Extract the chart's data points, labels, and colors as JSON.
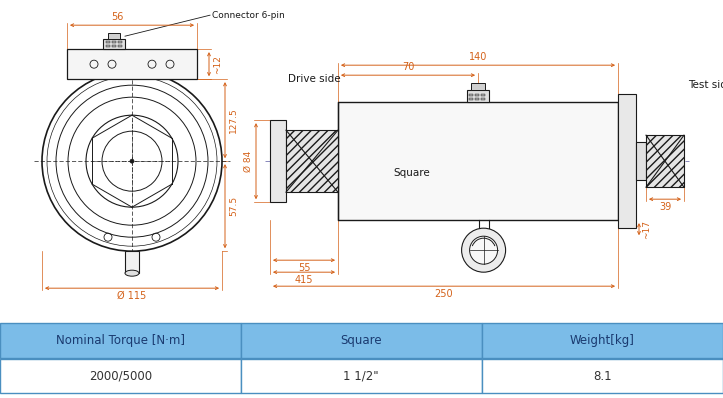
{
  "bg_color": "#ffffff",
  "drawing_color": "#1a1a1a",
  "dim_color": "#d4621a",
  "table_header_bg": "#7bbce8",
  "table_header_text": "#1a3a70",
  "table_row_bg": "#ffffff",
  "table_row_text": "#333333",
  "table_border": "#4a8fc0",
  "table_data": {
    "headers": [
      "Nominal Torque [N·m]",
      "Square",
      "Weight[kg]"
    ],
    "rows": [
      [
        "2000/5000",
        "1 1/2\"",
        "8.1"
      ]
    ]
  }
}
